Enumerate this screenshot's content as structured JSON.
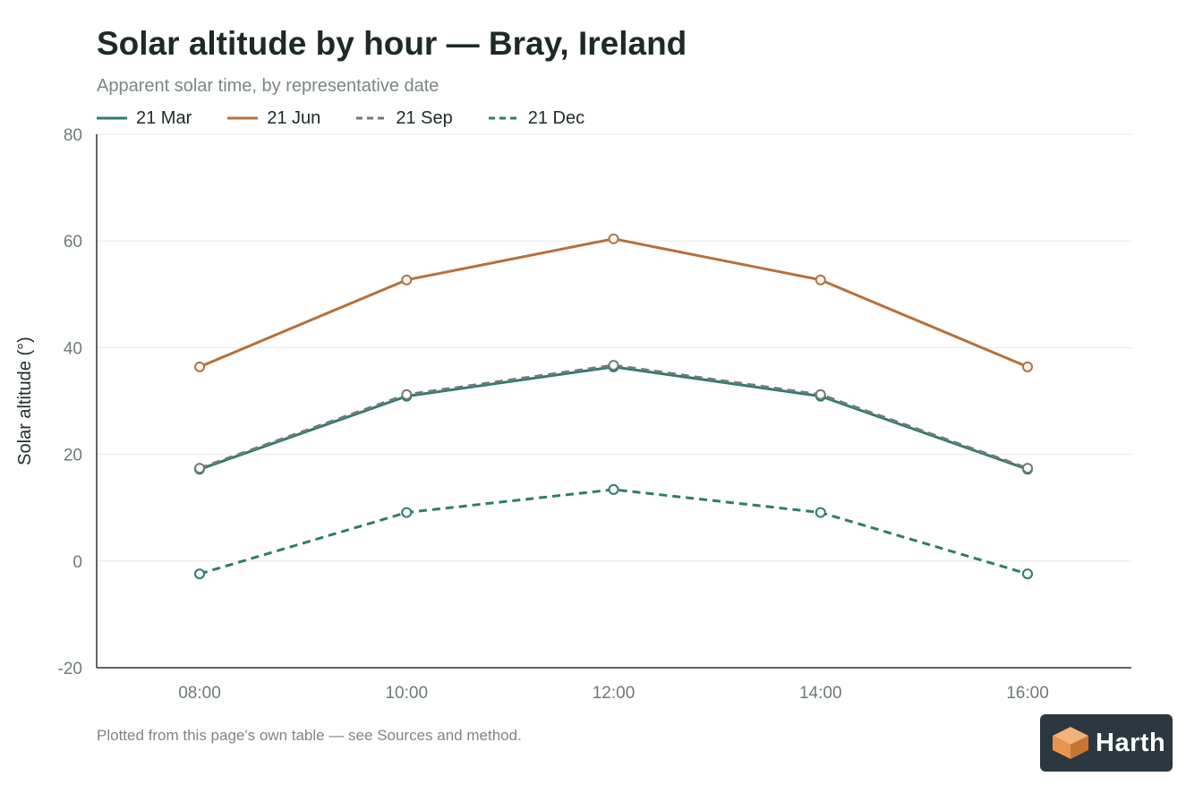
{
  "header": {
    "title": "Solar altitude by hour — Bray, Ireland",
    "subtitle": "Apparent solar time, by representative date"
  },
  "footnote": "Plotted from this page's own table — see Sources and method.",
  "brand": {
    "name": "Harth",
    "icon": "cube-logo-icon",
    "bg_color": "#2b3840",
    "accent_color": "#e8944a"
  },
  "colors": {
    "teal": "#2f7a6f",
    "orange": "#b5703a",
    "gray": "#6f7a78",
    "grid": "#e6e8e7",
    "axis": "#2a3432",
    "tick_text": "#6f7a78"
  },
  "chart_data": {
    "type": "line",
    "title": "Solar altitude by hour — Bray, Ireland",
    "subtitle": "Apparent solar time, by representative date",
    "xlabel": "",
    "ylabel": "Solar altitude (°)",
    "categories": [
      "08:00",
      "10:00",
      "12:00",
      "14:00",
      "16:00"
    ],
    "ylim": [
      -20,
      80
    ],
    "yticks": [
      "80",
      "60",
      "40",
      "20",
      "0",
      "-20"
    ],
    "grid": true,
    "legend_position": "top-left",
    "series": [
      {
        "name": "21 Mar",
        "color": "#2f7a6f",
        "dash": "solid",
        "values": [
          17.2,
          30.9,
          36.4,
          30.9,
          17.2
        ]
      },
      {
        "name": "21 Jun",
        "color": "#b5703a",
        "dash": "solid",
        "values": [
          36.4,
          52.7,
          60.4,
          52.7,
          36.4
        ]
      },
      {
        "name": "21 Sep",
        "color": "#6f7a78",
        "dash": "dashed",
        "values": [
          17.4,
          31.2,
          36.7,
          31.2,
          17.4
        ]
      },
      {
        "name": "21 Dec",
        "color": "#2f7a6f",
        "dash": "dashed",
        "values": [
          -2.4,
          9.1,
          13.4,
          9.1,
          -2.4
        ]
      }
    ]
  }
}
